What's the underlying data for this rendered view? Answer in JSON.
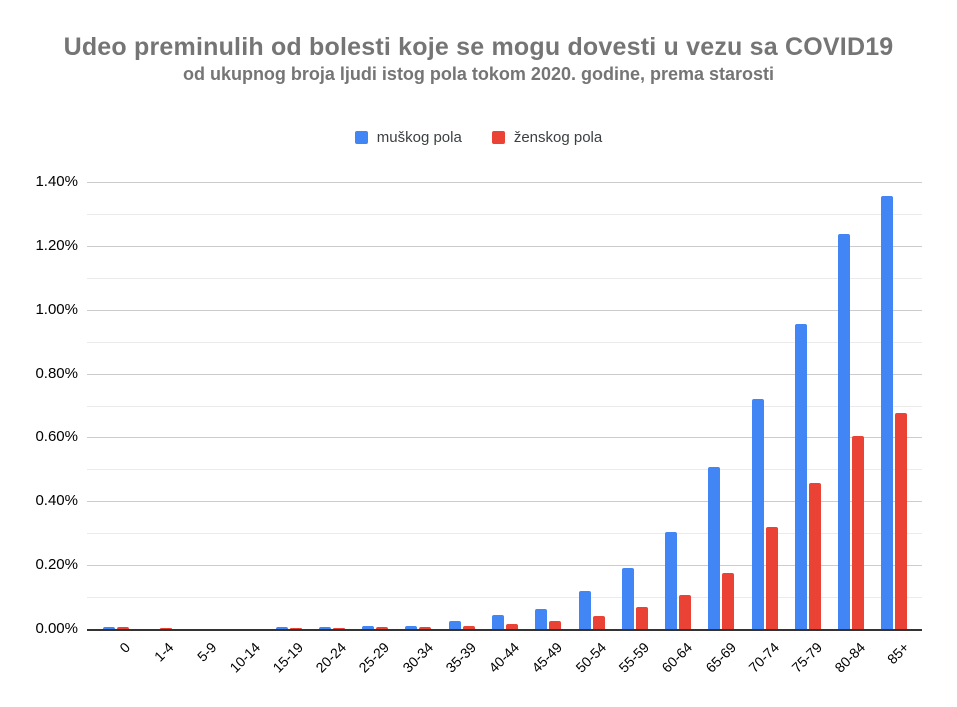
{
  "chart_data": {
    "type": "bar",
    "title": "Udeo preminulih od bolesti koje se mogu dovesti u vezu sa COVID19",
    "subtitle": "od ukupnog broja ljudi istog pola tokom 2020. godine, prema starosti",
    "categories": [
      "0",
      "1-4",
      "5-9",
      "10-14",
      "15-19",
      "20-24",
      "25-29",
      "30-34",
      "35-39",
      "40-44",
      "45-49",
      "50-54",
      "55-59",
      "60-64",
      "65-69",
      "70-74",
      "75-79",
      "80-84",
      "85+"
    ],
    "series": [
      {
        "key": "male",
        "name": "muškog pola",
        "color": "#4285F4",
        "values": [
          0.007,
          0.001,
          0.001,
          0.001,
          0.005,
          0.006,
          0.008,
          0.008,
          0.024,
          0.043,
          0.063,
          0.118,
          0.19,
          0.305,
          0.506,
          0.72,
          0.954,
          1.237,
          1.355
        ]
      },
      {
        "key": "female",
        "name": "ženskog pola",
        "color": "#EA4335",
        "values": [
          0.006,
          0.004,
          0.001,
          0.001,
          0.002,
          0.004,
          0.006,
          0.006,
          0.008,
          0.016,
          0.026,
          0.042,
          0.068,
          0.107,
          0.176,
          0.32,
          0.456,
          0.604,
          0.675
        ]
      }
    ],
    "xlabel": "",
    "ylabel": "",
    "unit": "%",
    "ylim": [
      0,
      1.4
    ],
    "ytick_step": 0.2,
    "yminor_step": 0.1,
    "ytick_labels": [
      "0.00%",
      "0.20%",
      "0.40%",
      "0.60%",
      "0.80%",
      "1.00%",
      "1.20%",
      "1.40%"
    ],
    "grid": true,
    "legend_position": "top",
    "axis_color": "#333333",
    "grid_major_color": "#cccccc",
    "grid_minor_color": "#ebebeb",
    "text_color": "#000000",
    "title_color": "#757575"
  }
}
